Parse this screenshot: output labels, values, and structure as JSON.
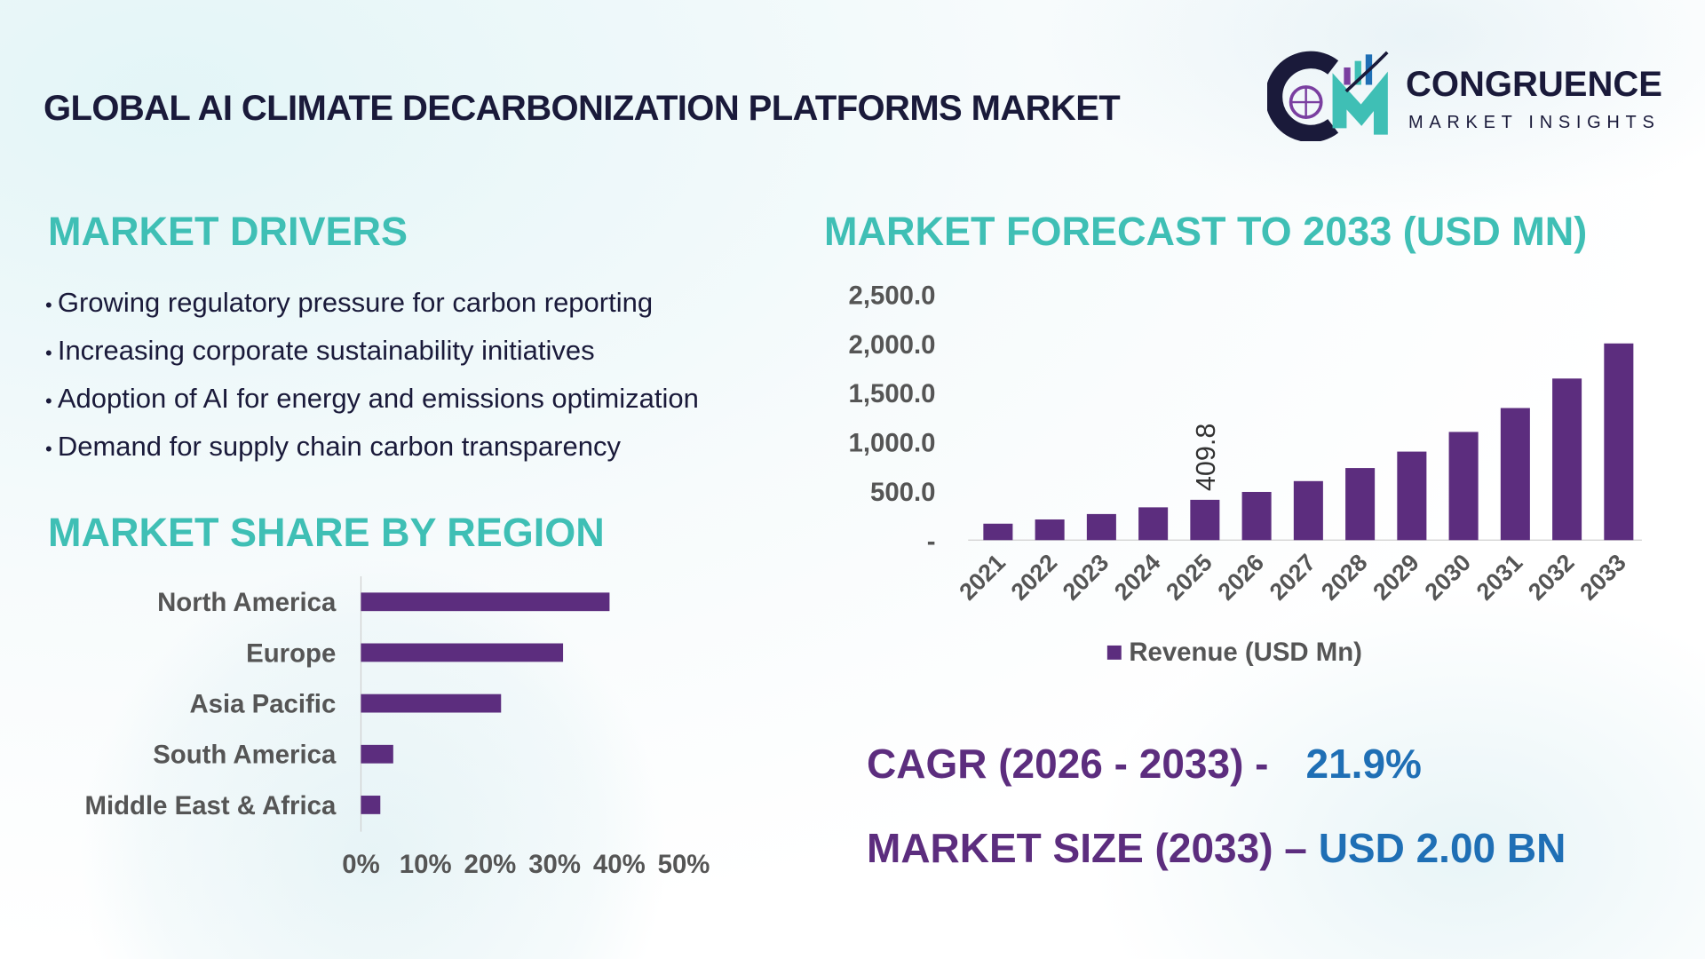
{
  "header": {
    "title": "GLOBAL AI CLIMATE DECARBONIZATION PLATFORMS MARKET",
    "brand": "CONGRUENCE",
    "brand_sub": "MARKET INSIGHTS"
  },
  "drivers": {
    "heading": "MARKET DRIVERS",
    "items": [
      "Growing regulatory pressure for carbon reporting",
      "Increasing corporate sustainability initiatives",
      "Adoption of AI for energy and emissions optimization",
      "Demand for supply chain carbon transparency"
    ]
  },
  "colors": {
    "bar": "#5c2d7e",
    "heading": "#3fbfb5",
    "value": "#1f6fb5"
  },
  "chart_data": [
    {
      "type": "bar",
      "orientation": "horizontal",
      "title": "MARKET SHARE BY REGION",
      "categories": [
        "North America",
        "Europe",
        "Asia Pacific",
        "South America",
        "Middle East & Africa"
      ],
      "values": [
        38.5,
        31.3,
        21.7,
        5,
        3
      ],
      "unit": "%",
      "xlim": [
        0,
        50
      ],
      "tick_labels": [
        "0%",
        "10%",
        "20%",
        "30%",
        "40%",
        "50%"
      ]
    },
    {
      "type": "bar",
      "title": "MARKET FORECAST TO 2033 (USD MN)",
      "categories": [
        "2021",
        "2022",
        "2023",
        "2024",
        "2025",
        "2026",
        "2027",
        "2028",
        "2029",
        "2030",
        "2031",
        "2032",
        "2033"
      ],
      "series": [
        {
          "name": "Revenue (USD Mn)",
          "values": [
            167,
            210,
            265,
            333,
            409.8,
            490,
            600,
            733,
            900,
            1100,
            1343,
            1643,
            2000
          ]
        }
      ],
      "data_labels": [
        {
          "category": "2025",
          "text": "409.8"
        }
      ],
      "ylim": [
        0,
        2500
      ],
      "tick_labels": [
        "-",
        "500.0",
        "1,000.0",
        "1,500.0",
        "2,000.0",
        "2,500.0"
      ],
      "legend": "bottom"
    }
  ],
  "stats": {
    "cagr_label": "CAGR (2026 - 2033) -",
    "cagr_value": "21.9%",
    "size_label": "MARKET SIZE (2033) –",
    "size_value": "USD 2.00 BN"
  }
}
